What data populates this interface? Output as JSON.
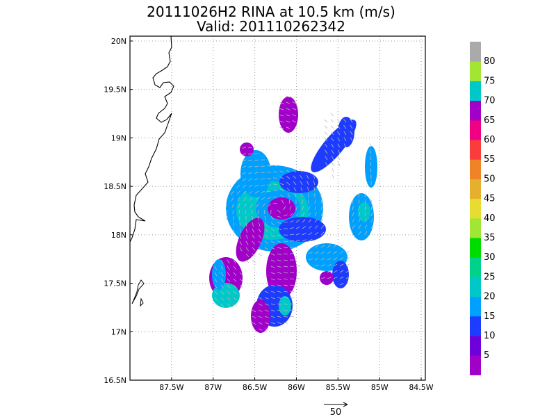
{
  "chart_data": {
    "type": "heatmap",
    "title": "20111026H2 RINA at 10.5 km (m/s)",
    "subtitle": "Valid: 201110262342",
    "x_ticks": [
      "87.5W",
      "87W",
      "86.5W",
      "86W",
      "85.5W",
      "85W",
      "84.5W"
    ],
    "y_ticks": [
      "16.5N",
      "17N",
      "17.5N",
      "18N",
      "18.5N",
      "19N",
      "19.5N",
      "20N"
    ],
    "xlim": [
      -88.0,
      -84.45
    ],
    "ylim": [
      16.5,
      20.05
    ],
    "grid": true,
    "colorbar": {
      "labels": [
        "5",
        "10",
        "15",
        "20",
        "25",
        "30",
        "35",
        "40",
        "45",
        "50",
        "55",
        "60",
        "65",
        "70",
        "75",
        "80"
      ],
      "colors": [
        "#a000c8",
        "#6e00dc",
        "#1e3cff",
        "#00a0ff",
        "#00c8c8",
        "#00d28c",
        "#00dc00",
        "#a0e632",
        "#e6dc32",
        "#e6af2d",
        "#f08228",
        "#fa3c3c",
        "#f00082",
        "#a000c8",
        "#00c8c8",
        "#a0e632",
        "#aaaaaa"
      ]
    },
    "vector_reference": {
      "label": "50",
      "units": "m/s"
    },
    "wind_regions": [
      {
        "name": "north-blob",
        "lon": -86.07,
        "lat": 19.12,
        "speed_band": "5"
      },
      {
        "name": "ne-arm",
        "lon": -85.55,
        "lat": 18.9,
        "speed_band": "10-15"
      },
      {
        "name": "east-patch",
        "lon": -85.05,
        "lat": 18.2,
        "speed_band": "20-25"
      },
      {
        "name": "core-ring",
        "lon": -86.3,
        "lat": 18.25,
        "speed_band": "20-25"
      },
      {
        "name": "eye",
        "lon": -86.1,
        "lat": 18.2,
        "speed_band": "5"
      },
      {
        "name": "sw-arm",
        "lon": -86.55,
        "lat": 17.6,
        "speed_band": "5"
      },
      {
        "name": "south-arm",
        "lon": -86.1,
        "lat": 17.4,
        "speed_band": "5-15"
      },
      {
        "name": "se-arm",
        "lon": -85.6,
        "lat": 17.6,
        "speed_band": "15-20"
      }
    ]
  }
}
